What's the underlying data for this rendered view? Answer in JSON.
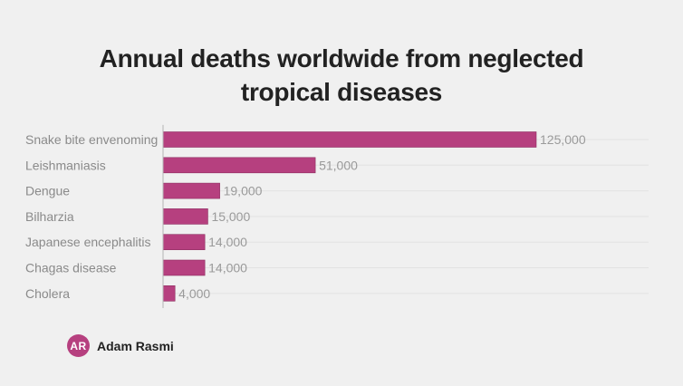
{
  "chart_data": {
    "type": "bar",
    "orientation": "horizontal",
    "title": "Annual deaths worldwide from neglected tropical diseases",
    "categories": [
      "Snake bite envenoming",
      "Leishmaniasis",
      "Dengue",
      "Bilharzia",
      "Japanese encephalitis",
      "Chagas disease",
      "Cholera"
    ],
    "values": [
      125000,
      51000,
      19000,
      15000,
      14000,
      14000,
      4000
    ],
    "value_labels": [
      "125,000",
      "51,000",
      "19,000",
      "15,000",
      "14,000",
      "14,000",
      "4,000"
    ],
    "xlim": [
      0,
      125000
    ],
    "grid": true,
    "bar_color": "#b6407f"
  },
  "title_lines": [
    "Annual deaths worldwide from neglected",
    "tropical diseases"
  ],
  "footer": {
    "avatar_initials": "AR",
    "author": "Adam Rasmi"
  },
  "colors": {
    "background": "#f0f0f0",
    "bar": "#b6407f",
    "bar_outline": "#8d2f61",
    "title": "#222222",
    "label": "#8a8a8a"
  }
}
